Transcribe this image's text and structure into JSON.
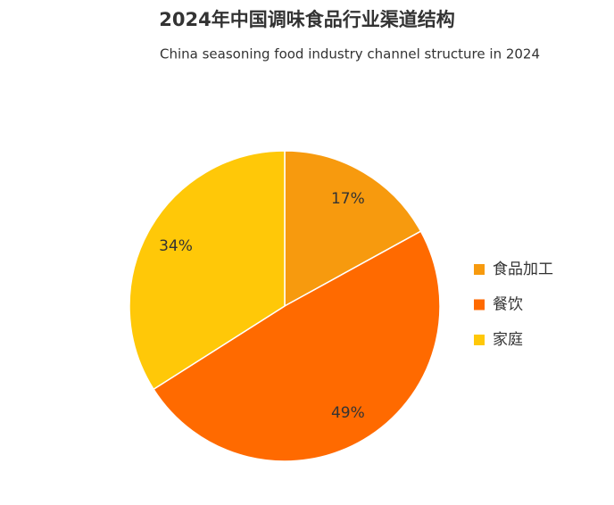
{
  "chart_data": {
    "type": "pie",
    "title": "2024年中国调味食品行业渠道结构",
    "subtitle": "China seasoning food industry channel structure in 2024",
    "categories": [
      "食品加工",
      "餐饮",
      "家庭"
    ],
    "values": [
      17,
      49,
      34
    ],
    "value_labels": [
      "17%",
      "49%",
      "34%"
    ],
    "colors": [
      "#f79a0e",
      "#ff6a00",
      "#ffc808"
    ],
    "legend": "right"
  }
}
